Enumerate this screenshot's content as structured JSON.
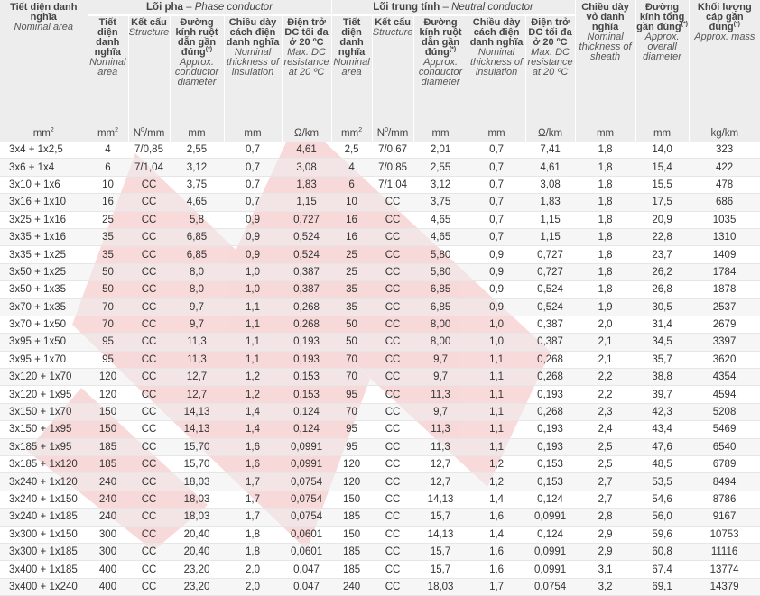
{
  "header": {
    "nominal_area": {
      "vi": "Tiết diện danh nghĩa",
      "en": "Nominal area"
    },
    "phase_group": {
      "vi": "Lõi pha",
      "sep": " – ",
      "en": "Phase conductor"
    },
    "neutral_group": {
      "vi": "Lõi trung tính",
      "sep": " – ",
      "en": "Neutral conductor"
    },
    "sheath": {
      "vi": "Chiều dày vỏ danh nghĩa",
      "en": "Nominal thickness of sheath"
    },
    "overall_diameter": {
      "vi": "Đường kính tổng gần đúng",
      "mark": "(*)",
      "en": "Approx. overall diameter"
    },
    "mass": {
      "vi": "Khối lượng cáp gần đúng",
      "mark": "(*)",
      "en": "Approx. mass"
    },
    "sub": {
      "area": {
        "vi": "Tiết diện danh nghĩa",
        "en": "Nominal area"
      },
      "structure": {
        "vi": "Kết cấu",
        "en": "Structure"
      },
      "diameter": {
        "vi": "Đường kính ruột dẫn gần đúng",
        "mark": "(*)",
        "en": "Approx. conductor diameter"
      },
      "insulation": {
        "vi": "Chiều dày cách điện danh nghĩa",
        "en": "Nominal thickness of insulation"
      },
      "resistance": {
        "vi": "Điện trở DC tối đa ở 20 ºC",
        "en": "Max. DC resistance at 20 ºC"
      }
    },
    "units": {
      "area": "mm",
      "area_sup": "2",
      "structure": "N",
      "structure_sup": "0",
      "structure_tail": "/mm",
      "mm": "mm",
      "resistance": "Ω/km",
      "mass": "kg/km"
    }
  },
  "rows": [
    [
      "3x4 + 1x2,5",
      "4",
      "7/0,85",
      "2,55",
      "0,7",
      "4,61",
      "2,5",
      "7/0,67",
      "2,01",
      "0,7",
      "7,41",
      "1,8",
      "14,0",
      "323"
    ],
    [
      "3x6 + 1x4",
      "6",
      "7/1,04",
      "3,12",
      "0,7",
      "3,08",
      "4",
      "7/0,85",
      "2,55",
      "0,7",
      "4,61",
      "1,8",
      "15,4",
      "422"
    ],
    [
      "3x10 + 1x6",
      "10",
      "CC",
      "3,75",
      "0,7",
      "1,83",
      "6",
      "7/1,04",
      "3,12",
      "0,7",
      "3,08",
      "1,8",
      "15,5",
      "478"
    ],
    [
      "3x16 + 1x10",
      "16",
      "CC",
      "4,65",
      "0,7",
      "1,15",
      "10",
      "CC",
      "3,75",
      "0,7",
      "1,83",
      "1,8",
      "17,5",
      "686"
    ],
    [
      "3x25 + 1x16",
      "25",
      "CC",
      "5,8",
      "0,9",
      "0,727",
      "16",
      "CC",
      "4,65",
      "0,7",
      "1,15",
      "1,8",
      "20,9",
      "1035"
    ],
    [
      "3x35 + 1x16",
      "35",
      "CC",
      "6,85",
      "0,9",
      "0,524",
      "16",
      "CC",
      "4,65",
      "0,7",
      "1,15",
      "1,8",
      "22,8",
      "1310"
    ],
    [
      "3x35 + 1x25",
      "35",
      "CC",
      "6,85",
      "0,9",
      "0,524",
      "25",
      "CC",
      "5,80",
      "0,9",
      "0,727",
      "1,8",
      "23,7",
      "1409"
    ],
    [
      "3x50 + 1x25",
      "50",
      "CC",
      "8,0",
      "1,0",
      "0,387",
      "25",
      "CC",
      "5,80",
      "0,9",
      "0,727",
      "1,8",
      "26,2",
      "1784"
    ],
    [
      "3x50 + 1x35",
      "50",
      "CC",
      "8,0",
      "1,0",
      "0,387",
      "35",
      "CC",
      "6,85",
      "0,9",
      "0,524",
      "1,8",
      "26,8",
      "1878"
    ],
    [
      "3x70 + 1x35",
      "70",
      "CC",
      "9,7",
      "1,1",
      "0,268",
      "35",
      "CC",
      "6,85",
      "0,9",
      "0,524",
      "1,9",
      "30,5",
      "2537"
    ],
    [
      "3x70 + 1x50",
      "70",
      "CC",
      "9,7",
      "1,1",
      "0,268",
      "50",
      "CC",
      "8,00",
      "1,0",
      "0,387",
      "2,0",
      "31,4",
      "2679"
    ],
    [
      "3x95 + 1x50",
      "95",
      "CC",
      "11,3",
      "1,1",
      "0,193",
      "50",
      "CC",
      "8,00",
      "1,0",
      "0,387",
      "2,1",
      "34,5",
      "3397"
    ],
    [
      "3x95 + 1x70",
      "95",
      "CC",
      "11,3",
      "1,1",
      "0,193",
      "70",
      "CC",
      "9,7",
      "1,1",
      "0,268",
      "2,1",
      "35,7",
      "3620"
    ],
    [
      "3x120 + 1x70",
      "120",
      "CC",
      "12,7",
      "1,2",
      "0,153",
      "70",
      "CC",
      "9,7",
      "1,1",
      "0,268",
      "2,2",
      "38,8",
      "4354"
    ],
    [
      "3x120 + 1x95",
      "120",
      "CC",
      "12,7",
      "1,2",
      "0,153",
      "95",
      "CC",
      "11,3",
      "1,1",
      "0,193",
      "2,2",
      "39,7",
      "4594"
    ],
    [
      "3x150 + 1x70",
      "150",
      "CC",
      "14,13",
      "1,4",
      "0,124",
      "70",
      "CC",
      "9,7",
      "1,1",
      "0,268",
      "2,3",
      "42,3",
      "5208"
    ],
    [
      "3x150 + 1x95",
      "150",
      "CC",
      "14,13",
      "1,4",
      "0,124",
      "95",
      "CC",
      "11,3",
      "1,1",
      "0,193",
      "2,4",
      "43,4",
      "5469"
    ],
    [
      "3x185 + 1x95",
      "185",
      "CC",
      "15,70",
      "1,6",
      "0,0991",
      "95",
      "CC",
      "11,3",
      "1,1",
      "0,193",
      "2,5",
      "47,6",
      "6540"
    ],
    [
      "3x185 + 1x120",
      "185",
      "CC",
      "15,70",
      "1,6",
      "0,0991",
      "120",
      "CC",
      "12,7",
      "1,2",
      "0,153",
      "2,5",
      "48,5",
      "6789"
    ],
    [
      "3x240 + 1x120",
      "240",
      "CC",
      "18,03",
      "1,7",
      "0,0754",
      "120",
      "CC",
      "12,7",
      "1,2",
      "0,153",
      "2,7",
      "53,5",
      "8494"
    ],
    [
      "3x240 + 1x150",
      "240",
      "CC",
      "18,03",
      "1,7",
      "0,0754",
      "150",
      "CC",
      "14,13",
      "1,4",
      "0,124",
      "2,7",
      "54,6",
      "8786"
    ],
    [
      "3x240 + 1x185",
      "240",
      "CC",
      "18,03",
      "1,7",
      "0,0754",
      "185",
      "CC",
      "15,7",
      "1,6",
      "0,0991",
      "2,8",
      "56,0",
      "9167"
    ],
    [
      "3x300 + 1x150",
      "300",
      "CC",
      "20,40",
      "1,8",
      "0,0601",
      "150",
      "CC",
      "14,13",
      "1,4",
      "0,124",
      "2,9",
      "59,6",
      "10753"
    ],
    [
      "3x300 + 1x185",
      "300",
      "CC",
      "20,40",
      "1,8",
      "0,0601",
      "185",
      "CC",
      "15,7",
      "1,6",
      "0,0991",
      "2,9",
      "60,8",
      "11116"
    ],
    [
      "3x400 + 1x185",
      "400",
      "CC",
      "23,20",
      "2,0",
      "0,047",
      "185",
      "CC",
      "15,7",
      "1,6",
      "0,0991",
      "3,1",
      "67,4",
      "13774"
    ],
    [
      "3x400 + 1x240",
      "400",
      "CC",
      "23,20",
      "2,0",
      "0,047",
      "240",
      "CC",
      "18,03",
      "1,7",
      "0,0754",
      "3,2",
      "69,1",
      "14379"
    ]
  ]
}
